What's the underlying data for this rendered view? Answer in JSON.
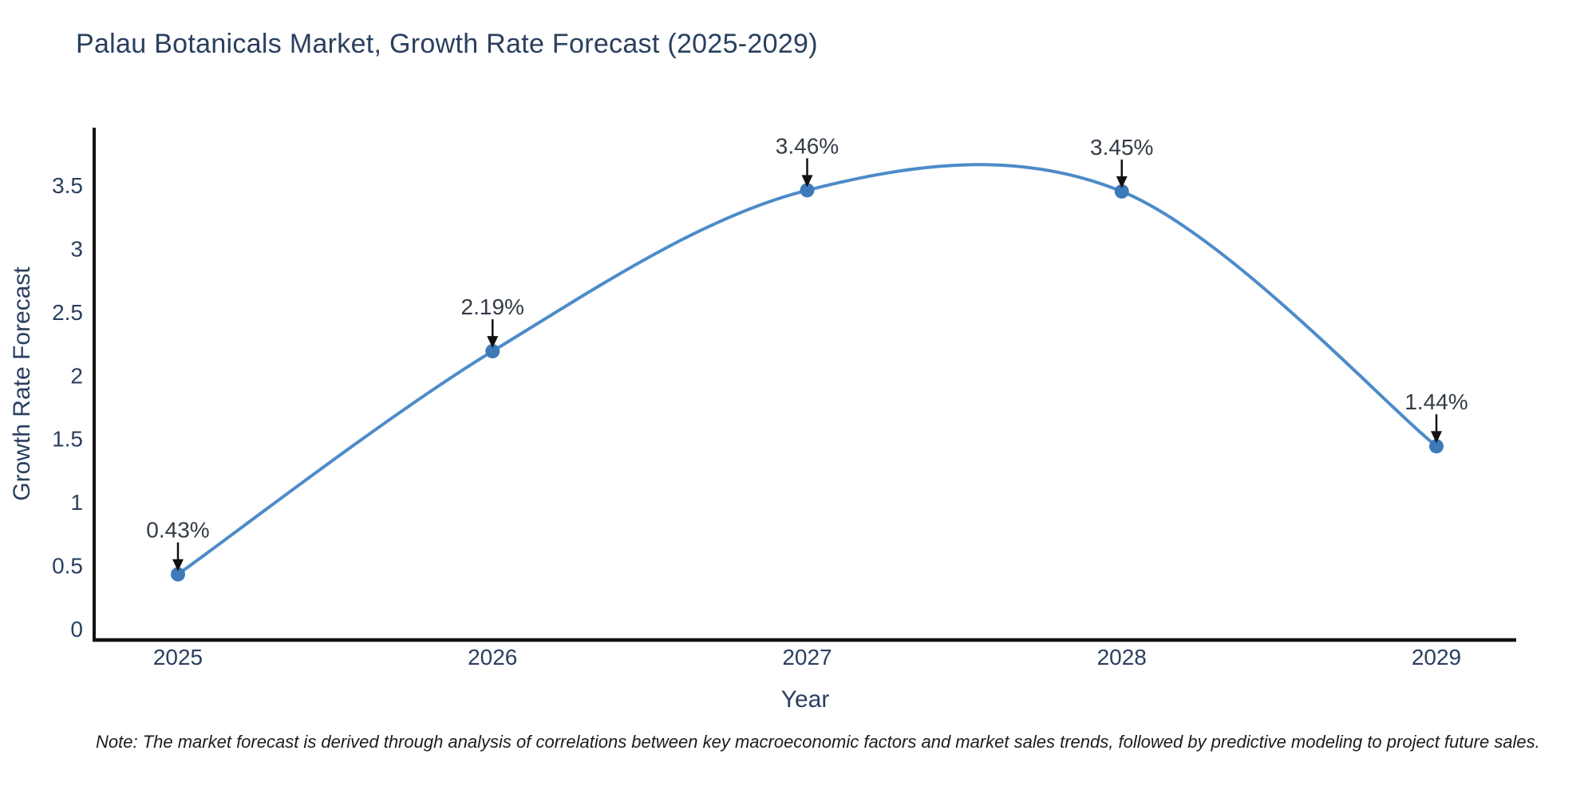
{
  "note": {
    "text": "Note: The market forecast is derived through analysis of correlations between key macroeconomic factors and market sales trends, followed by predictive modeling to project future sales."
  },
  "chart_data": {
    "type": "line",
    "title": "Palau Botanicals Market, Growth Rate Forecast (2025-2029)",
    "xlabel": "Year",
    "ylabel": "Growth Rate Forecast",
    "x": [
      2025,
      2026,
      2027,
      2028,
      2029
    ],
    "series": [
      {
        "name": "Growth Rate Forecast",
        "values": [
          0.43,
          2.19,
          3.46,
          3.45,
          1.44
        ]
      }
    ],
    "point_labels": [
      "0.43%",
      "2.19%",
      "3.46%",
      "3.45%",
      "1.44%"
    ],
    "yticks": [
      0,
      0.5,
      1,
      1.5,
      2,
      2.5,
      3,
      3.5
    ],
    "ylim": [
      -0.09,
      3.95
    ],
    "line_shape": "spline",
    "grid": false,
    "legend": "none",
    "colors": {
      "line": "#4d8bc9",
      "marker": "#3d7ab8",
      "axis_line": "#111111",
      "arrow": "#111111",
      "text": "#2a3f5f",
      "annotation": "#333b46",
      "note_text": "#1c1c1c"
    }
  }
}
